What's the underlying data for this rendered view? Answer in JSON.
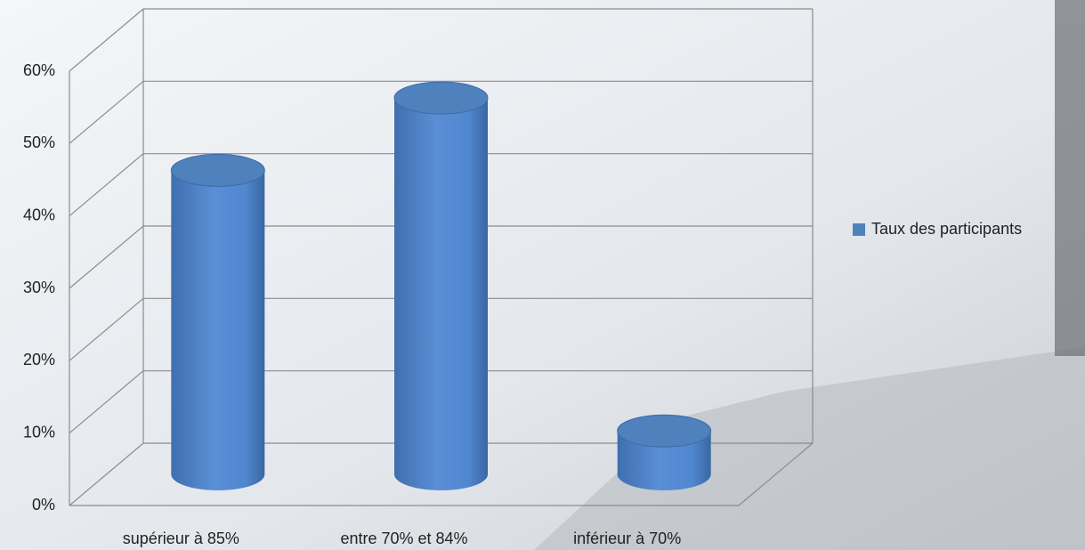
{
  "chart_data": {
    "type": "bar",
    "categories": [
      "supérieur à 85%",
      "entre 70% et 84%",
      "inférieur à 70%"
    ],
    "series": [
      {
        "name": "Taux des participants",
        "color": "#4f81bd",
        "values": [
          42,
          52,
          6
        ]
      }
    ],
    "ylim": [
      0,
      60
    ],
    "yticks": [
      {
        "value": 0,
        "label": "0%"
      },
      {
        "value": 10,
        "label": "10%"
      },
      {
        "value": 20,
        "label": "20%"
      },
      {
        "value": 30,
        "label": "30%"
      },
      {
        "value": 40,
        "label": "40%"
      },
      {
        "value": 50,
        "label": "50%"
      },
      {
        "value": 60,
        "label": "60%"
      }
    ],
    "grid": true,
    "legend": "right"
  }
}
